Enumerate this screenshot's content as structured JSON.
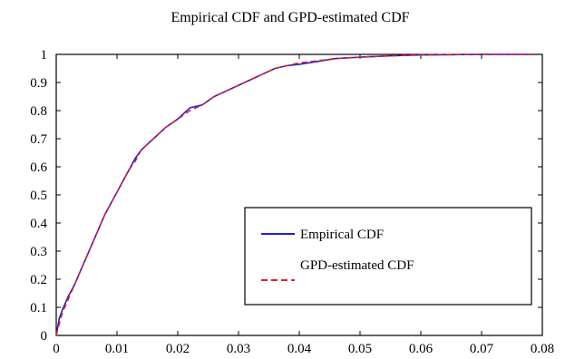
{
  "chart_data": {
    "type": "line",
    "title": "Empirical CDF and GPD-estimated CDF",
    "xlabel": "",
    "ylabel": "",
    "xlim": [
      0,
      0.08
    ],
    "ylim": [
      0,
      1
    ],
    "x_ticks": [
      0,
      0.01,
      0.02,
      0.03,
      0.04,
      0.05,
      0.06,
      0.07,
      0.08
    ],
    "x_tick_labels": [
      "0",
      "0.01",
      "0.02",
      "0.03",
      "0.04",
      "0.05",
      "0.06",
      "0.07",
      "0.08"
    ],
    "y_ticks": [
      0,
      0.1,
      0.2,
      0.3,
      0.4,
      0.5,
      0.6,
      0.7,
      0.8,
      0.9,
      1
    ],
    "y_tick_labels": [
      "0",
      "0.1",
      "0.2",
      "0.3",
      "0.4",
      "0.5",
      "0.6",
      "0.7",
      "0.8",
      "0.9",
      "1"
    ],
    "grid": false,
    "legend_position": "lower-right",
    "series": [
      {
        "name": "Empirical CDF",
        "color": "#1f1fd6",
        "style": "solid",
        "x": [
          0,
          0.0005,
          0.001,
          0.002,
          0.003,
          0.004,
          0.005,
          0.006,
          0.007,
          0.008,
          0.009,
          0.01,
          0.011,
          0.012,
          0.013,
          0.014,
          0.016,
          0.018,
          0.02,
          0.022,
          0.024,
          0.026,
          0.028,
          0.03,
          0.032,
          0.034,
          0.036,
          0.038,
          0.04,
          0.043,
          0.046,
          0.05,
          0.055,
          0.06,
          0.065,
          0.07,
          0.075,
          0.078
        ],
        "y": [
          0,
          0.06,
          0.09,
          0.14,
          0.18,
          0.23,
          0.28,
          0.33,
          0.38,
          0.43,
          0.47,
          0.51,
          0.55,
          0.59,
          0.63,
          0.66,
          0.7,
          0.74,
          0.77,
          0.81,
          0.82,
          0.85,
          0.87,
          0.89,
          0.91,
          0.93,
          0.95,
          0.96,
          0.965,
          0.975,
          0.985,
          0.99,
          0.995,
          0.998,
          0.999,
          1.0,
          1.0,
          1.0
        ]
      },
      {
        "name": "GPD-estimated CDF",
        "color": "#e02020",
        "style": "dashed",
        "x": [
          0,
          0.0005,
          0.001,
          0.002,
          0.003,
          0.004,
          0.005,
          0.006,
          0.007,
          0.008,
          0.009,
          0.01,
          0.011,
          0.012,
          0.013,
          0.014,
          0.016,
          0.018,
          0.02,
          0.022,
          0.024,
          0.026,
          0.028,
          0.03,
          0.032,
          0.034,
          0.036,
          0.038,
          0.04,
          0.043,
          0.046,
          0.05,
          0.055,
          0.06,
          0.065,
          0.07,
          0.075,
          0.078
        ],
        "y": [
          0,
          0.04,
          0.08,
          0.13,
          0.18,
          0.23,
          0.28,
          0.33,
          0.38,
          0.43,
          0.47,
          0.51,
          0.55,
          0.59,
          0.62,
          0.66,
          0.7,
          0.74,
          0.77,
          0.8,
          0.82,
          0.85,
          0.87,
          0.89,
          0.91,
          0.93,
          0.95,
          0.96,
          0.97,
          0.977,
          0.985,
          0.99,
          0.995,
          0.998,
          0.999,
          1.0,
          1.0,
          1.0
        ]
      }
    ]
  }
}
